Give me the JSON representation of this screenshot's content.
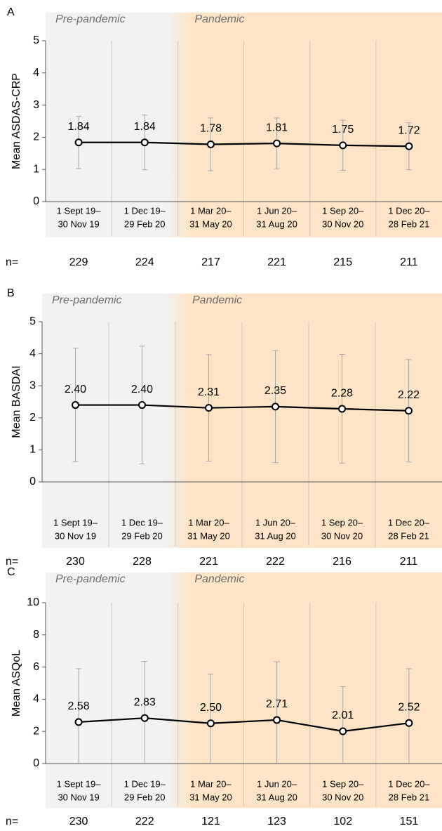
{
  "chart_data": [
    {
      "type": "line",
      "panel": "A",
      "periods": [
        "Pre-pandemic",
        "Pandemic"
      ],
      "ylabel": "Mean ASDAS-CRP",
      "categories": [
        [
          "1 Sept 19–",
          "30 Nov 19"
        ],
        [
          "1 Dec 19–",
          "29 Feb 20"
        ],
        [
          "1 Mar 20–",
          "31 May 20"
        ],
        [
          "1 Jun 20–",
          "31 Aug 20"
        ],
        [
          "1 Sep 20–",
          "30 Nov 20"
        ],
        [
          "1 Dec 20–",
          "28 Feb 21"
        ]
      ],
      "values": [
        1.84,
        1.84,
        1.78,
        1.81,
        1.75,
        1.72
      ],
      "value_labels": [
        "1.84",
        "1.84",
        "1.78",
        "1.81",
        "1.75",
        "1.72"
      ],
      "errors": [
        0.81,
        0.85,
        0.82,
        0.79,
        0.78,
        0.73
      ],
      "n_label": "n=",
      "n": [
        229,
        224,
        217,
        221,
        215,
        211
      ],
      "ylim": [
        0,
        5
      ],
      "yticks": [
        0,
        1,
        2,
        3,
        4,
        5
      ],
      "color": "#000000",
      "error_color": "#a6a6a6",
      "pre_color": "#f2f2f2",
      "pandemic_color": "#fde4c7"
    },
    {
      "type": "line",
      "panel": "B",
      "periods": [
        "Pre-pandemic",
        "Pandemic"
      ],
      "ylabel": "Mean BASDAI",
      "categories": [
        [
          "1 Sept 19–",
          "30 Nov 19"
        ],
        [
          "1 Dec 19–",
          "29 Feb 20"
        ],
        [
          "1 Mar 20–",
          "31 May 20"
        ],
        [
          "1 Jun 20–",
          "31 Aug 20"
        ],
        [
          "1 Sep 20–",
          "30 Nov 20"
        ],
        [
          "1 Dec 20–",
          "28 Feb 21"
        ]
      ],
      "values": [
        2.4,
        2.4,
        2.31,
        2.35,
        2.28,
        2.22
      ],
      "value_labels": [
        "2.40",
        "2.40",
        "2.31",
        "2.35",
        "2.28",
        "2.22"
      ],
      "errors": [
        1.77,
        1.84,
        1.66,
        1.75,
        1.7,
        1.6
      ],
      "n_label": "n=",
      "n": [
        230,
        228,
        221,
        222,
        216,
        211
      ],
      "ylim": [
        0,
        5
      ],
      "yticks": [
        0,
        1,
        2,
        3,
        4,
        5
      ],
      "color": "#000000",
      "error_color": "#a6a6a6",
      "pre_color": "#f2f2f2",
      "pandemic_color": "#fde4c7"
    },
    {
      "type": "line",
      "panel": "C",
      "periods": [
        "Pre-pandemic",
        "Pandemic"
      ],
      "ylabel": "Mean ASQoL",
      "categories": [
        [
          "1 Sept 19–",
          "30 Nov 19"
        ],
        [
          "1 Dec 19–",
          "29 Feb 20"
        ],
        [
          "1 Mar 20–",
          "31 May 20"
        ],
        [
          "1 Jun 20–",
          "31 Aug 20"
        ],
        [
          "1 Sep 20–",
          "30 Nov 20"
        ],
        [
          "1 Dec 20–",
          "28 Feb 21"
        ]
      ],
      "values": [
        2.58,
        2.83,
        2.5,
        2.71,
        2.01,
        2.52
      ],
      "value_labels": [
        "2.58",
        "2.83",
        "2.50",
        "2.71",
        "2.01",
        "2.52"
      ],
      "errors": [
        3.32,
        3.52,
        3.05,
        3.62,
        2.77,
        3.38
      ],
      "n_label": "n=",
      "n": [
        230,
        222,
        121,
        123,
        102,
        151
      ],
      "ylim": [
        0,
        10
      ],
      "yticks": [
        0,
        2,
        4,
        6,
        8,
        10
      ],
      "color": "#000000",
      "error_color": "#a6a6a6",
      "pre_color": "#f2f2f2",
      "pandemic_color": "#fde4c7"
    }
  ]
}
